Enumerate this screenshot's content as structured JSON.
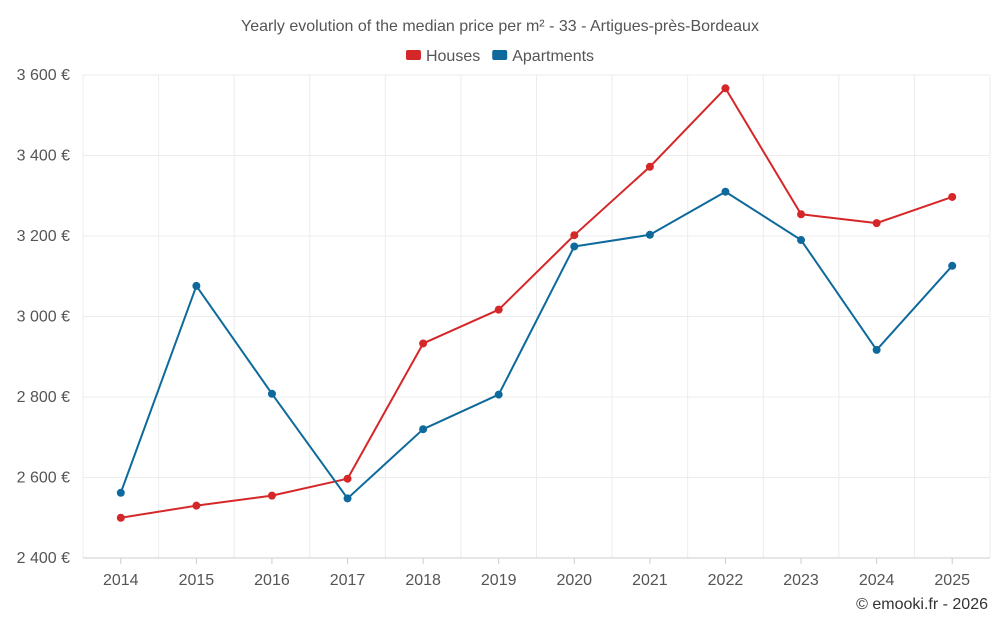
{
  "chart_data": {
    "type": "line",
    "title": "Yearly evolution of the median price per m² - 33 - Artigues-près-Bordeaux",
    "xlabel": "",
    "ylabel": "",
    "categories": [
      "2014",
      "2015",
      "2016",
      "2017",
      "2018",
      "2019",
      "2020",
      "2021",
      "2022",
      "2023",
      "2024",
      "2025"
    ],
    "ylim": [
      2400,
      3600
    ],
    "yticks": [
      2400,
      2600,
      2800,
      3000,
      3200,
      3400,
      3600
    ],
    "ytick_labels": [
      "2 400 €",
      "2 600 €",
      "2 800 €",
      "3 000 €",
      "3 200 €",
      "3 400 €",
      "3 600 €"
    ],
    "grid": true,
    "legend_position": "top-center",
    "series": [
      {
        "name": "Houses",
        "color": "#d62728",
        "values": [
          2500,
          2530,
          2555,
          2597,
          2933,
          3017,
          3202,
          3372,
          3567,
          3254,
          3232,
          3297
        ]
      },
      {
        "name": "Apartments",
        "color": "#0e6a9c",
        "values": [
          2562,
          3076,
          2808,
          2548,
          2720,
          2806,
          3174,
          3203,
          3310,
          3190,
          2917,
          3126
        ]
      }
    ],
    "credit": "© emooki.fr - 2026"
  }
}
